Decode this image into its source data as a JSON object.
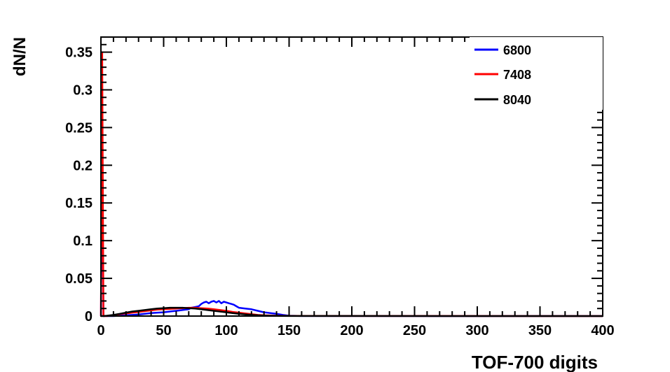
{
  "chart_data": {
    "type": "line",
    "title": "",
    "xlabel": "TOF-700 digits",
    "ylabel": "dN/N",
    "xlim": [
      0,
      400
    ],
    "ylim": [
      0,
      0.37
    ],
    "x_ticks": [
      0,
      50,
      100,
      150,
      200,
      250,
      300,
      350,
      400
    ],
    "x_tick_labels": [
      "0",
      "50",
      "100",
      "150",
      "200",
      "250",
      "300",
      "350",
      "400"
    ],
    "y_ticks": [
      0,
      0.05,
      0.1,
      0.15,
      0.2,
      0.25,
      0.3,
      0.35
    ],
    "y_tick_labels": [
      "0",
      "0.05",
      "0.1",
      "0.15",
      "0.2",
      "0.25",
      "0.3",
      "0.35"
    ],
    "grid": false,
    "legend_position": "top-right",
    "series": [
      {
        "name": "6800",
        "color": "#0000ff",
        "x": [
          0,
          1,
          2,
          5,
          10,
          15,
          20,
          25,
          30,
          35,
          40,
          45,
          50,
          55,
          60,
          65,
          70,
          72,
          75,
          78,
          80,
          82,
          84,
          86,
          88,
          90,
          92,
          94,
          96,
          98,
          100,
          102,
          104,
          106,
          108,
          110,
          115,
          120,
          125,
          130,
          135,
          140,
          145,
          150,
          160,
          400
        ],
        "y": [
          0,
          0.22,
          0.0,
          0.0,
          0.0,
          0.0005,
          0.001,
          0.0015,
          0.002,
          0.003,
          0.004,
          0.0045,
          0.005,
          0.006,
          0.007,
          0.008,
          0.009,
          0.011,
          0.012,
          0.013,
          0.016,
          0.018,
          0.019,
          0.017,
          0.019,
          0.02,
          0.018,
          0.02,
          0.017,
          0.019,
          0.018,
          0.017,
          0.016,
          0.015,
          0.013,
          0.011,
          0.01,
          0.009,
          0.007,
          0.005,
          0.004,
          0.003,
          0.0015,
          0.0005,
          0.0001,
          0.0
        ]
      },
      {
        "name": "7408",
        "color": "#ff0000",
        "x": [
          0,
          1,
          2,
          5,
          10,
          15,
          20,
          25,
          30,
          35,
          40,
          45,
          50,
          55,
          60,
          65,
          70,
          75,
          80,
          85,
          90,
          95,
          100,
          105,
          110,
          115,
          120,
          125,
          130,
          140,
          150,
          400
        ],
        "y": [
          0,
          0.35,
          0.0,
          0.0,
          0.001,
          0.0025,
          0.0035,
          0.0045,
          0.0055,
          0.0065,
          0.0075,
          0.0085,
          0.009,
          0.0095,
          0.01,
          0.0105,
          0.011,
          0.011,
          0.0105,
          0.01,
          0.009,
          0.008,
          0.007,
          0.0055,
          0.0045,
          0.0035,
          0.0025,
          0.0015,
          0.001,
          0.0005,
          0.0002,
          0.0
        ]
      },
      {
        "name": "8040",
        "color": "#000000",
        "x": [
          0,
          2,
          5,
          10,
          15,
          20,
          25,
          30,
          35,
          40,
          45,
          50,
          55,
          60,
          65,
          70,
          75,
          80,
          85,
          90,
          95,
          100,
          105,
          110,
          115,
          120,
          125,
          130,
          140,
          150,
          400
        ],
        "y": [
          0,
          0.0,
          0.0005,
          0.0015,
          0.003,
          0.0045,
          0.006,
          0.007,
          0.008,
          0.009,
          0.01,
          0.0105,
          0.011,
          0.011,
          0.011,
          0.0105,
          0.01,
          0.009,
          0.008,
          0.007,
          0.006,
          0.005,
          0.004,
          0.003,
          0.0022,
          0.0015,
          0.001,
          0.0006,
          0.0003,
          0.0001,
          0.0
        ]
      }
    ]
  }
}
